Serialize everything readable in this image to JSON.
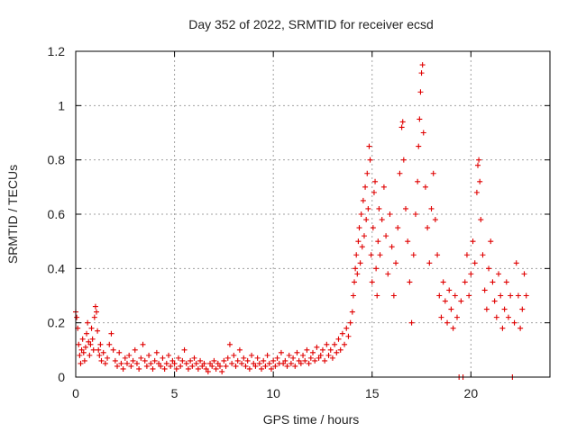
{
  "chart_data": {
    "type": "scatter",
    "title": "Day 352 of 2022, SRMTID for receiver ecsd",
    "xlabel": "GPS time / hours",
    "ylabel": "SRMTID / TECUs",
    "xlim": [
      0,
      24
    ],
    "ylim": [
      0,
      1.2
    ],
    "x_ticks": [
      0,
      5,
      10,
      15,
      20
    ],
    "x_tick_labels": [
      "0",
      "5",
      "10",
      "15",
      "20"
    ],
    "y_ticks": [
      0,
      0.2,
      0.4,
      0.6,
      0.8,
      1.0,
      1.2
    ],
    "y_tick_labels": [
      "0",
      "0.2",
      "0.4",
      "0.6",
      "0.8",
      "1",
      "1.2"
    ],
    "grid": true,
    "marker": "+",
    "series_color": "#e00000",
    "series": [
      {
        "name": "SRMTID",
        "points": [
          [
            0.0,
            0.24
          ],
          [
            0.05,
            0.22
          ],
          [
            0.1,
            0.18
          ],
          [
            0.15,
            0.12
          ],
          [
            0.2,
            0.08
          ],
          [
            0.25,
            0.05
          ],
          [
            0.3,
            0.1
          ],
          [
            0.35,
            0.14
          ],
          [
            0.4,
            0.09
          ],
          [
            0.45,
            0.06
          ],
          [
            0.5,
            0.11
          ],
          [
            0.55,
            0.16
          ],
          [
            0.6,
            0.2
          ],
          [
            0.65,
            0.13
          ],
          [
            0.7,
            0.08
          ],
          [
            0.75,
            0.12
          ],
          [
            0.8,
            0.18
          ],
          [
            0.85,
            0.14
          ],
          [
            0.9,
            0.1
          ],
          [
            0.95,
            0.22
          ],
          [
            1.0,
            0.26
          ],
          [
            1.05,
            0.24
          ],
          [
            1.1,
            0.17
          ],
          [
            1.15,
            0.1
          ],
          [
            1.2,
            0.08
          ],
          [
            1.25,
            0.12
          ],
          [
            1.3,
            0.06
          ],
          [
            1.4,
            0.09
          ],
          [
            1.5,
            0.05
          ],
          [
            1.6,
            0.07
          ],
          [
            1.7,
            0.12
          ],
          [
            1.8,
            0.16
          ],
          [
            1.9,
            0.1
          ],
          [
            2.0,
            0.06
          ],
          [
            2.1,
            0.04
          ],
          [
            2.2,
            0.09
          ],
          [
            2.3,
            0.05
          ],
          [
            2.4,
            0.03
          ],
          [
            2.5,
            0.07
          ],
          [
            2.6,
            0.05
          ],
          [
            2.7,
            0.08
          ],
          [
            2.8,
            0.04
          ],
          [
            2.9,
            0.06
          ],
          [
            3.0,
            0.1
          ],
          [
            3.1,
            0.05
          ],
          [
            3.2,
            0.03
          ],
          [
            3.3,
            0.07
          ],
          [
            3.4,
            0.12
          ],
          [
            3.5,
            0.06
          ],
          [
            3.6,
            0.04
          ],
          [
            3.7,
            0.08
          ],
          [
            3.8,
            0.05
          ],
          [
            3.9,
            0.03
          ],
          [
            4.0,
            0.06
          ],
          [
            4.1,
            0.09
          ],
          [
            4.2,
            0.05
          ],
          [
            4.3,
            0.04
          ],
          [
            4.4,
            0.07
          ],
          [
            4.5,
            0.03
          ],
          [
            4.6,
            0.05
          ],
          [
            4.7,
            0.08
          ],
          [
            4.8,
            0.04
          ],
          [
            4.9,
            0.06
          ],
          [
            5.0,
            0.05
          ],
          [
            5.1,
            0.03
          ],
          [
            5.2,
            0.07
          ],
          [
            5.3,
            0.04
          ],
          [
            5.4,
            0.06
          ],
          [
            5.5,
            0.1
          ],
          [
            5.6,
            0.05
          ],
          [
            5.7,
            0.03
          ],
          [
            5.8,
            0.06
          ],
          [
            5.9,
            0.04
          ],
          [
            6.0,
            0.07
          ],
          [
            6.1,
            0.05
          ],
          [
            6.2,
            0.03
          ],
          [
            6.3,
            0.06
          ],
          [
            6.4,
            0.04
          ],
          [
            6.5,
            0.05
          ],
          [
            6.6,
            0.03
          ],
          [
            6.7,
            0.02
          ],
          [
            6.8,
            0.05
          ],
          [
            6.9,
            0.04
          ],
          [
            7.0,
            0.06
          ],
          [
            7.1,
            0.03
          ],
          [
            7.2,
            0.05
          ],
          [
            7.3,
            0.04
          ],
          [
            7.4,
            0.02
          ],
          [
            7.5,
            0.06
          ],
          [
            7.6,
            0.04
          ],
          [
            7.7,
            0.07
          ],
          [
            7.8,
            0.12
          ],
          [
            7.9,
            0.05
          ],
          [
            8.0,
            0.08
          ],
          [
            8.1,
            0.04
          ],
          [
            8.2,
            0.06
          ],
          [
            8.3,
            0.1
          ],
          [
            8.4,
            0.05
          ],
          [
            8.5,
            0.07
          ],
          [
            8.6,
            0.04
          ],
          [
            8.7,
            0.06
          ],
          [
            8.8,
            0.03
          ],
          [
            8.9,
            0.08
          ],
          [
            9.0,
            0.05
          ],
          [
            9.1,
            0.04
          ],
          [
            9.2,
            0.07
          ],
          [
            9.3,
            0.05
          ],
          [
            9.4,
            0.03
          ],
          [
            9.5,
            0.06
          ],
          [
            9.6,
            0.04
          ],
          [
            9.7,
            0.08
          ],
          [
            9.8,
            0.05
          ],
          [
            9.9,
            0.03
          ],
          [
            10.0,
            0.06
          ],
          [
            10.1,
            0.04
          ],
          [
            10.2,
            0.07
          ],
          [
            10.3,
            0.05
          ],
          [
            10.4,
            0.09
          ],
          [
            10.5,
            0.05
          ],
          [
            10.6,
            0.06
          ],
          [
            10.7,
            0.04
          ],
          [
            10.8,
            0.08
          ],
          [
            10.9,
            0.05
          ],
          [
            11.0,
            0.07
          ],
          [
            11.1,
            0.04
          ],
          [
            11.2,
            0.09
          ],
          [
            11.3,
            0.06
          ],
          [
            11.4,
            0.05
          ],
          [
            11.5,
            0.08
          ],
          [
            11.6,
            0.06
          ],
          [
            11.7,
            0.1
          ],
          [
            11.8,
            0.05
          ],
          [
            11.9,
            0.07
          ],
          [
            12.0,
            0.09
          ],
          [
            12.1,
            0.06
          ],
          [
            12.2,
            0.11
          ],
          [
            12.3,
            0.07
          ],
          [
            12.4,
            0.08
          ],
          [
            12.5,
            0.1
          ],
          [
            12.6,
            0.06
          ],
          [
            12.7,
            0.12
          ],
          [
            12.8,
            0.08
          ],
          [
            12.9,
            0.1
          ],
          [
            13.0,
            0.07
          ],
          [
            13.1,
            0.12
          ],
          [
            13.2,
            0.09
          ],
          [
            13.3,
            0.14
          ],
          [
            13.4,
            0.1
          ],
          [
            13.5,
            0.16
          ],
          [
            13.6,
            0.12
          ],
          [
            13.7,
            0.18
          ],
          [
            13.8,
            0.15
          ],
          [
            13.9,
            0.2
          ],
          [
            14.0,
            0.24
          ],
          [
            14.05,
            0.3
          ],
          [
            14.1,
            0.35
          ],
          [
            14.15,
            0.4
          ],
          [
            14.2,
            0.45
          ],
          [
            14.25,
            0.38
          ],
          [
            14.3,
            0.5
          ],
          [
            14.35,
            0.55
          ],
          [
            14.4,
            0.42
          ],
          [
            14.45,
            0.6
          ],
          [
            14.5,
            0.48
          ],
          [
            14.55,
            0.65
          ],
          [
            14.6,
            0.52
          ],
          [
            14.65,
            0.7
          ],
          [
            14.7,
            0.58
          ],
          [
            14.75,
            0.75
          ],
          [
            14.8,
            0.62
          ],
          [
            14.85,
            0.85
          ],
          [
            14.9,
            0.8
          ],
          [
            14.95,
            0.45
          ],
          [
            15.0,
            0.35
          ],
          [
            15.05,
            0.55
          ],
          [
            15.1,
            0.68
          ],
          [
            15.15,
            0.72
          ],
          [
            15.2,
            0.4
          ],
          [
            15.25,
            0.3
          ],
          [
            15.3,
            0.5
          ],
          [
            15.35,
            0.62
          ],
          [
            15.4,
            0.45
          ],
          [
            15.5,
            0.58
          ],
          [
            15.6,
            0.7
          ],
          [
            15.7,
            0.52
          ],
          [
            15.8,
            0.38
          ],
          [
            15.9,
            0.6
          ],
          [
            16.0,
            0.48
          ],
          [
            16.1,
            0.3
          ],
          [
            16.2,
            0.42
          ],
          [
            16.3,
            0.55
          ],
          [
            16.4,
            0.75
          ],
          [
            16.5,
            0.92
          ],
          [
            16.55,
            0.94
          ],
          [
            16.6,
            0.8
          ],
          [
            16.7,
            0.62
          ],
          [
            16.8,
            0.5
          ],
          [
            16.9,
            0.35
          ],
          [
            17.0,
            0.2
          ],
          [
            17.1,
            0.45
          ],
          [
            17.2,
            0.6
          ],
          [
            17.3,
            0.72
          ],
          [
            17.35,
            0.85
          ],
          [
            17.4,
            0.95
          ],
          [
            17.45,
            1.05
          ],
          [
            17.5,
            1.12
          ],
          [
            17.55,
            1.15
          ],
          [
            17.6,
            0.9
          ],
          [
            17.7,
            0.7
          ],
          [
            17.8,
            0.55
          ],
          [
            17.9,
            0.42
          ],
          [
            18.0,
            0.62
          ],
          [
            18.1,
            0.75
          ],
          [
            18.2,
            0.58
          ],
          [
            18.3,
            0.45
          ],
          [
            18.4,
            0.3
          ],
          [
            18.5,
            0.22
          ],
          [
            18.6,
            0.35
          ],
          [
            18.7,
            0.28
          ],
          [
            18.8,
            0.2
          ],
          [
            18.9,
            0.32
          ],
          [
            19.0,
            0.25
          ],
          [
            19.1,
            0.18
          ],
          [
            19.2,
            0.3
          ],
          [
            19.3,
            0.22
          ],
          [
            19.4,
            0.0
          ],
          [
            19.5,
            0.28
          ],
          [
            19.6,
            0.0
          ],
          [
            19.7,
            0.35
          ],
          [
            19.8,
            0.45
          ],
          [
            19.9,
            0.3
          ],
          [
            20.0,
            0.38
          ],
          [
            20.1,
            0.5
          ],
          [
            20.2,
            0.42
          ],
          [
            20.3,
            0.68
          ],
          [
            20.35,
            0.78
          ],
          [
            20.4,
            0.8
          ],
          [
            20.45,
            0.72
          ],
          [
            20.5,
            0.58
          ],
          [
            20.6,
            0.45
          ],
          [
            20.7,
            0.32
          ],
          [
            20.8,
            0.25
          ],
          [
            20.9,
            0.4
          ],
          [
            21.0,
            0.5
          ],
          [
            21.1,
            0.35
          ],
          [
            21.2,
            0.28
          ],
          [
            21.3,
            0.22
          ],
          [
            21.4,
            0.38
          ],
          [
            21.5,
            0.3
          ],
          [
            21.6,
            0.18
          ],
          [
            21.7,
            0.25
          ],
          [
            21.8,
            0.35
          ],
          [
            21.9,
            0.22
          ],
          [
            22.0,
            0.3
          ],
          [
            22.1,
            0.0
          ],
          [
            22.2,
            0.2
          ],
          [
            22.3,
            0.42
          ],
          [
            22.4,
            0.3
          ],
          [
            22.5,
            0.18
          ],
          [
            22.6,
            0.25
          ],
          [
            22.7,
            0.38
          ],
          [
            22.8,
            0.3
          ]
        ]
      }
    ]
  }
}
